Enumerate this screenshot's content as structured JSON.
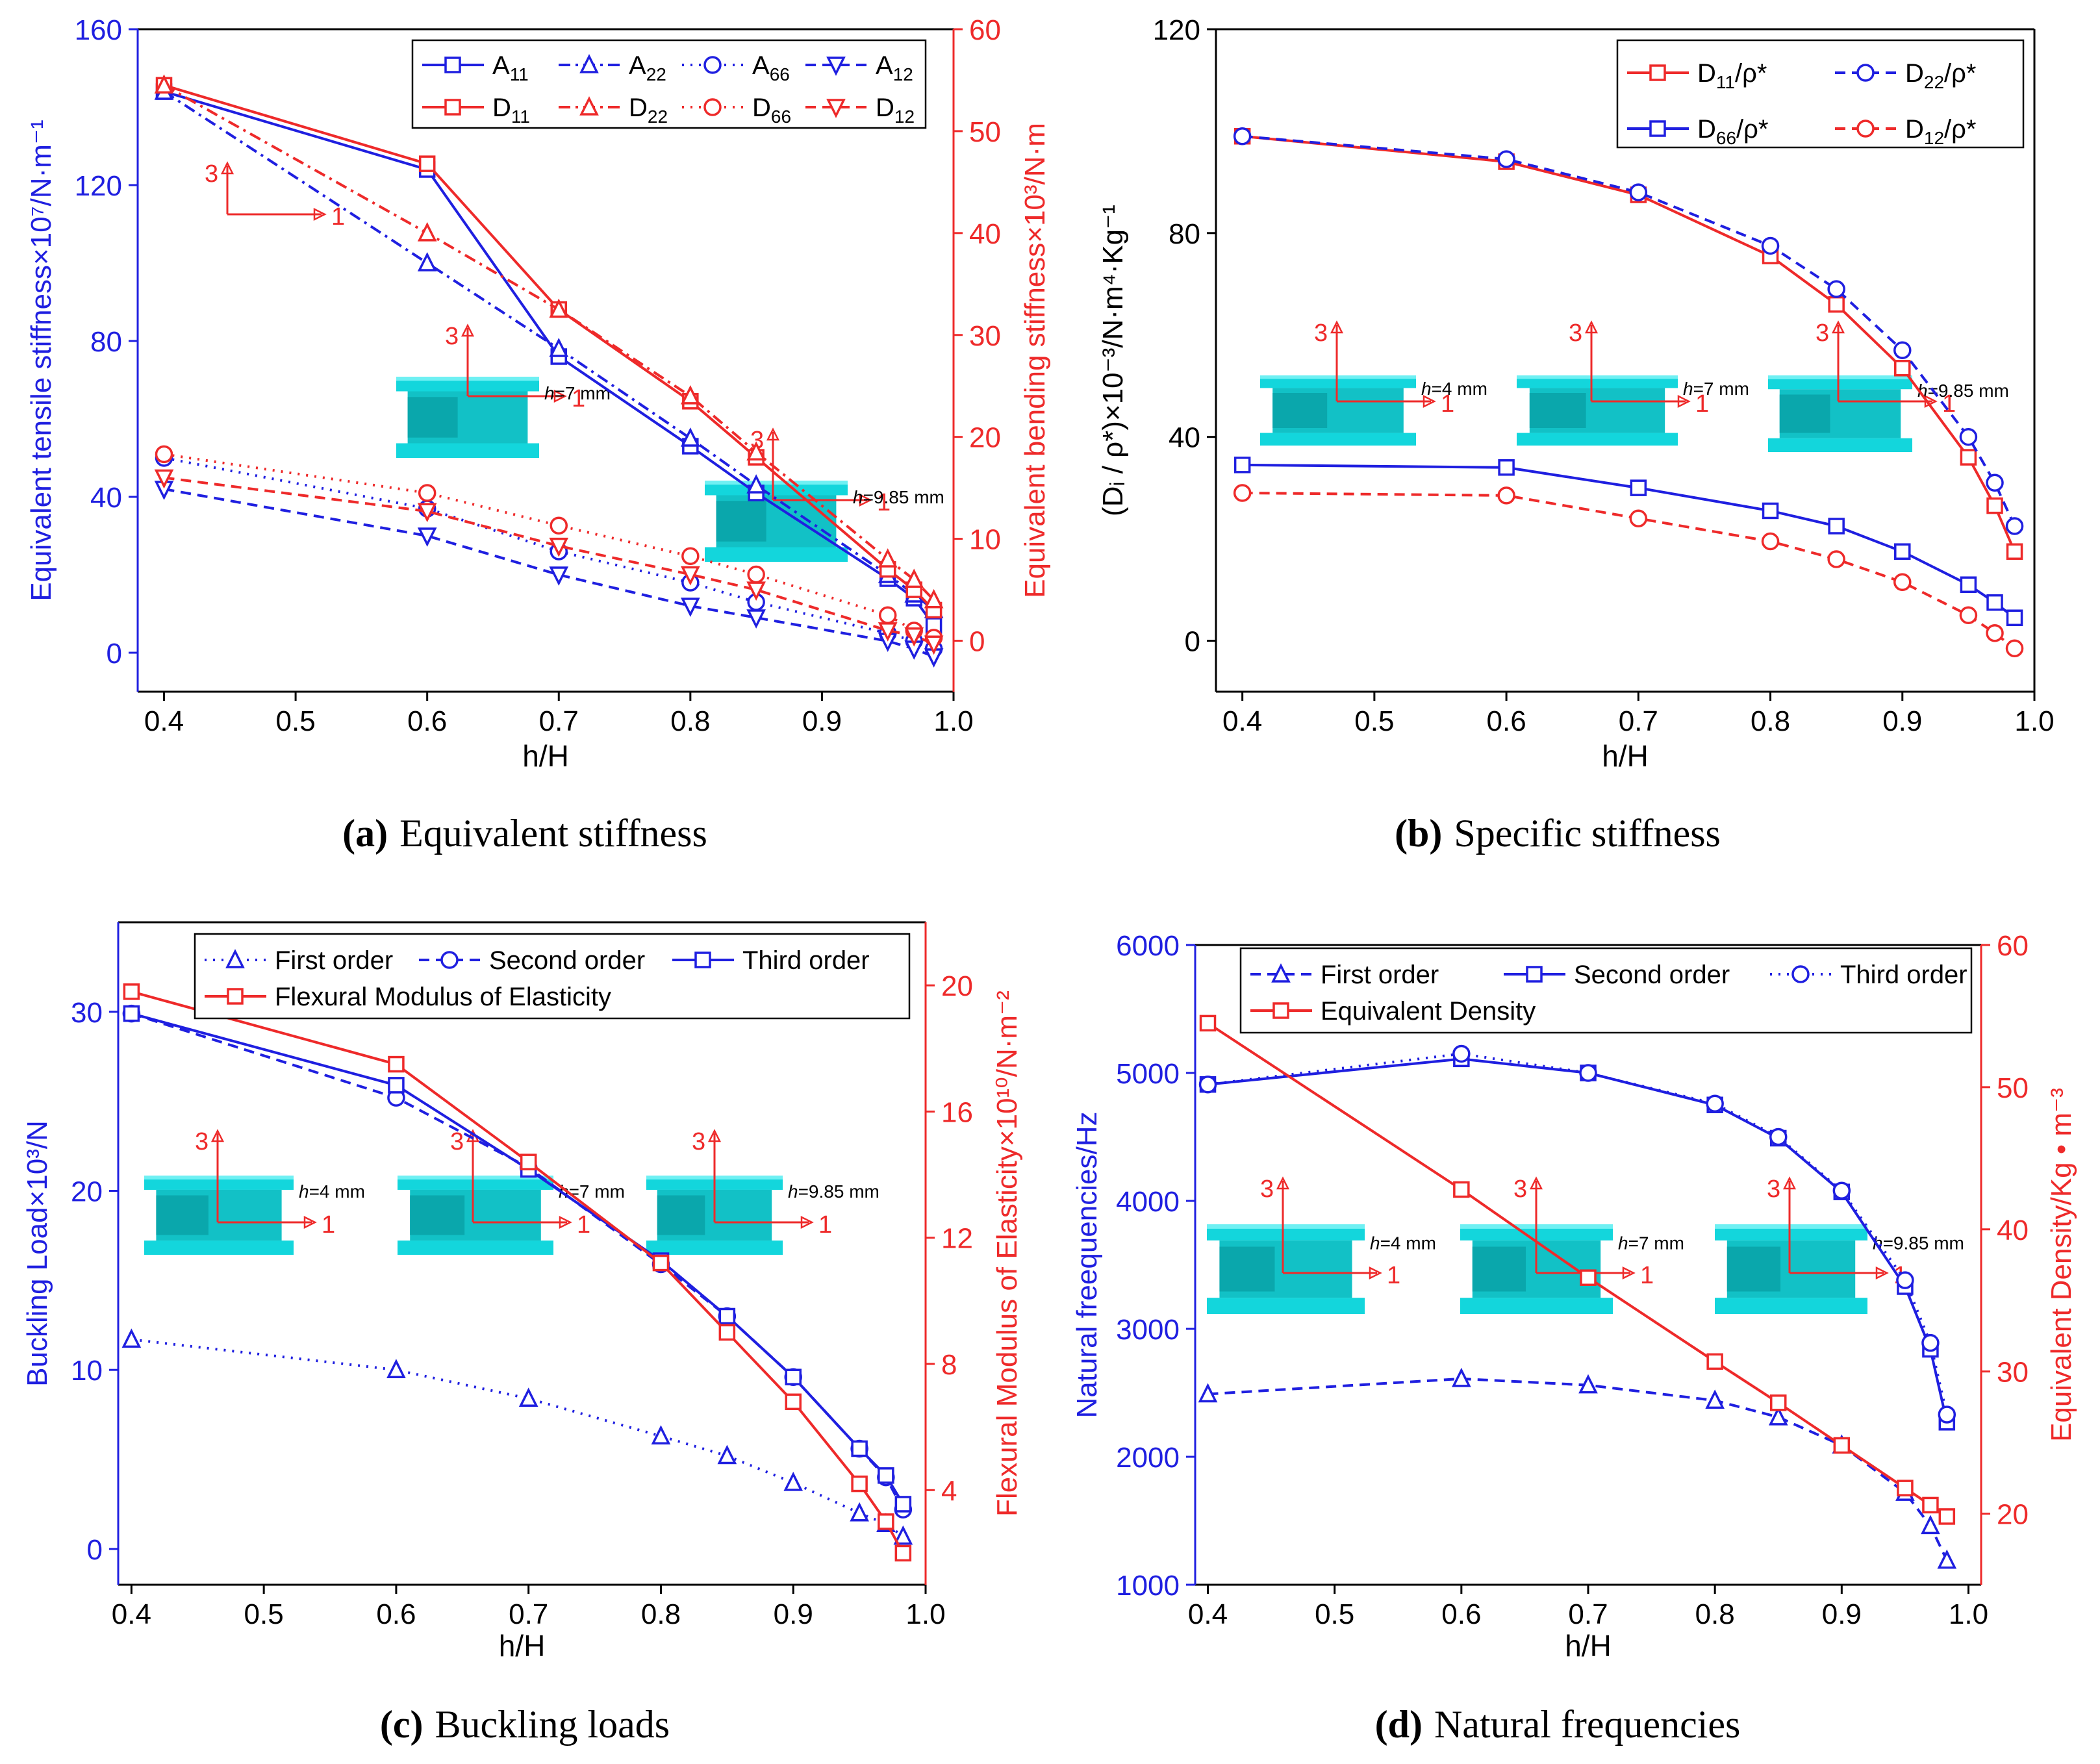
{
  "colors": {
    "blue": "#1f1fe0",
    "red": "#ee2a2a",
    "axis": "#000000",
    "cyan": "#13d6dc",
    "cyan_dark": "#0aa7ac",
    "cyan_mid": "#12c1c6"
  },
  "inset_labels": {
    "axis3": "3",
    "axis1": "1",
    "h_prefix": "h",
    "h4": "=4 mm",
    "h7": "=7 mm",
    "h985": "=9.85 mm"
  },
  "panels": [
    {
      "caption_letter": "(a)",
      "caption_text": "Equivalent stiffness",
      "chart_data": {
        "type": "line",
        "xlabel": "h/H",
        "ylabel": "Equivalent tensile stiffness×10⁷/N·m⁻¹",
        "y2label": "Equivalent bending stiffness×10³/N·m",
        "xlim": [
          0.38,
          1.0
        ],
        "ylim": [
          -10,
          160
        ],
        "y2lim": [
          -5,
          60
        ],
        "xticks": [
          "0.4",
          "0.5",
          "0.6",
          "0.7",
          "0.8",
          "0.9",
          "1.0"
        ],
        "yticks": [
          "0",
          "40",
          "80",
          "120",
          "160"
        ],
        "y2ticks": [
          "0",
          "10",
          "20",
          "30",
          "40",
          "50",
          "60"
        ],
        "x": [
          0.4,
          0.6,
          0.7,
          0.8,
          0.85,
          0.95,
          0.97,
          0.985
        ],
        "series": [
          {
            "name": "A11",
            "label_base": "A",
            "label_sub": "11",
            "axis": "left",
            "values": [
              144,
              124,
              76,
              53,
              41,
              19,
              14,
              7
            ]
          },
          {
            "name": "A22",
            "label_base": "A",
            "label_sub": "22",
            "axis": "left",
            "values": [
              144,
              100,
              78,
              55,
              43,
              20,
              15,
              11
            ]
          },
          {
            "name": "A66",
            "label_base": "A",
            "label_sub": "66",
            "axis": "left",
            "values": [
              50,
              37,
              26,
              18,
              13,
              5,
              3,
              1
            ]
          },
          {
            "name": "A12",
            "label_base": "A",
            "label_sub": "12",
            "axis": "left",
            "values": [
              42,
              30,
              20,
              12,
              9,
              3,
              1,
              -1
            ]
          },
          {
            "name": "D11",
            "label_base": "D",
            "label_sub": "11",
            "axis": "right",
            "values": [
              54.5,
              46.8,
              32.5,
              23.5,
              18,
              7,
              5,
              3
            ]
          },
          {
            "name": "D22",
            "label_base": "D",
            "label_sub": "22",
            "axis": "right",
            "values": [
              54.5,
              40,
              32.5,
              24,
              18.5,
              8,
              6,
              4
            ]
          },
          {
            "name": "D66",
            "label_base": "D",
            "label_sub": "66",
            "axis": "right",
            "values": [
              18.3,
              14.5,
              11.3,
              8.3,
              6.5,
              2.5,
              1,
              0.3
            ]
          },
          {
            "name": "D12",
            "label_base": "D",
            "label_sub": "12",
            "axis": "right",
            "values": [
              16,
              12.7,
              9.3,
              6.5,
              5,
              1,
              0.5,
              -0.3
            ]
          }
        ]
      }
    },
    {
      "caption_letter": "(b)",
      "caption_text": "Specific stiffness",
      "chart_data": {
        "type": "line",
        "xlabel": "h/H",
        "ylabel": "(Dᵢ / ρ*)×10⁻³/N·m⁴·Kg⁻¹",
        "xlim": [
          0.38,
          1.0
        ],
        "ylim": [
          -10,
          120
        ],
        "xticks": [
          "0.4",
          "0.5",
          "0.6",
          "0.7",
          "0.8",
          "0.9",
          "1.0"
        ],
        "yticks": [
          "0",
          "40",
          "80",
          "120"
        ],
        "x": [
          0.4,
          0.6,
          0.7,
          0.8,
          0.85,
          0.9,
          0.95,
          0.97,
          0.985
        ],
        "series": [
          {
            "name": "D11/ρ*",
            "label_base": "D",
            "label_sub": "11",
            "label_tail": "/ρ*",
            "values": [
              99,
              94,
              87.5,
              75.5,
              66,
              53.5,
              36,
              26.5,
              17.5
            ]
          },
          {
            "name": "D22/ρ*",
            "label_base": "D",
            "label_sub": "22",
            "label_tail": "/ρ*",
            "values": [
              99,
              94.5,
              88,
              77.5,
              69,
              57,
              40,
              31,
              22.5
            ]
          },
          {
            "name": "D66/ρ*",
            "label_base": "D",
            "label_sub": "66",
            "label_tail": "/ρ*",
            "values": [
              34.5,
              34,
              30,
              25.5,
              22.5,
              17.5,
              11,
              7.5,
              4.5
            ]
          },
          {
            "name": "D12/ρ*",
            "label_base": "D",
            "label_sub": "12",
            "label_tail": "/ρ*",
            "values": [
              29,
              28.5,
              24,
              19.5,
              16,
              11.5,
              5,
              1.5,
              -1.5
            ]
          }
        ]
      }
    },
    {
      "caption_letter": "(c)",
      "caption_text": "Buckling loads",
      "chart_data": {
        "type": "line",
        "xlabel": "h/H",
        "ylabel": "Buckling Load×10³/N",
        "y2label": "Flexural Modulus of Elasticity×10¹⁰/N·m⁻²",
        "xlim": [
          0.39,
          1.0
        ],
        "ylim": [
          -2,
          35
        ],
        "y2lim": [
          1,
          22
        ],
        "xticks": [
          "0.4",
          "0.5",
          "0.6",
          "0.7",
          "0.8",
          "0.9",
          "1.0"
        ],
        "yticks": [
          "0",
          "10",
          "20",
          "30"
        ],
        "y2ticks": [
          "4",
          "8",
          "12",
          "16",
          "20"
        ],
        "x": [
          0.4,
          0.6,
          0.7,
          0.8,
          0.85,
          0.9,
          0.95,
          0.97,
          0.983
        ],
        "series": [
          {
            "name": "First order",
            "axis": "left",
            "values": [
              11.7,
              10,
              8.4,
              6.3,
              5.2,
              3.7,
              2,
              1.4,
              0.7
            ]
          },
          {
            "name": "Second order",
            "axis": "left",
            "values": [
              29.9,
              25.2,
              21.3,
              15.9,
              13,
              9.6,
              5.6,
              4,
              2.2
            ]
          },
          {
            "name": "Third order",
            "axis": "left",
            "values": [
              29.9,
              25.9,
              21.2,
              16.1,
              13,
              9.6,
              5.6,
              4.1,
              2.5
            ]
          },
          {
            "name": "Flexural Modulus of Elasticity",
            "axis": "right",
            "values": [
              19.8,
              17.5,
              14.4,
              11.2,
              9,
              6.8,
              4.2,
              3,
              2
            ]
          }
        ]
      }
    },
    {
      "caption_letter": "(d)",
      "caption_text": "Natural frequencies",
      "chart_data": {
        "type": "line",
        "xlabel": "h/H",
        "ylabel": "Natural freequencies/Hz",
        "y2label": "Equivalent Density/Kg • m⁻³",
        "xlim": [
          0.39,
          1.01
        ],
        "ylim": [
          1000,
          6000
        ],
        "y2lim": [
          15,
          60
        ],
        "xticks": [
          "0.4",
          "0.5",
          "0.6",
          "0.7",
          "0.8",
          "0.9",
          "1.0"
        ],
        "yticks": [
          "1000",
          "2000",
          "3000",
          "4000",
          "5000",
          "6000"
        ],
        "y2ticks": [
          "20",
          "30",
          "40",
          "50",
          "60"
        ],
        "x": [
          0.4,
          0.6,
          0.7,
          0.8,
          0.85,
          0.9,
          0.95,
          0.97,
          0.983
        ],
        "series": [
          {
            "name": "First order",
            "axis": "left",
            "values": [
              2490,
              2610,
              2560,
              2440,
              2310,
              2090,
              1720,
              1460,
              1190
            ]
          },
          {
            "name": "Second order",
            "axis": "left",
            "values": [
              4910,
              5110,
              5000,
              4750,
              4490,
              4070,
              3330,
              2840,
              2270
            ]
          },
          {
            "name": "Third order",
            "axis": "left",
            "values": [
              4910,
              5150,
              5000,
              4760,
              4500,
              4080,
              3380,
              2890,
              2330
            ]
          },
          {
            "name": "Equivalent Density",
            "axis": "right",
            "values": [
              54.5,
              42.8,
              36.6,
              30.7,
              27.8,
              24.8,
              21.8,
              20.6,
              19.8
            ]
          }
        ]
      }
    }
  ]
}
